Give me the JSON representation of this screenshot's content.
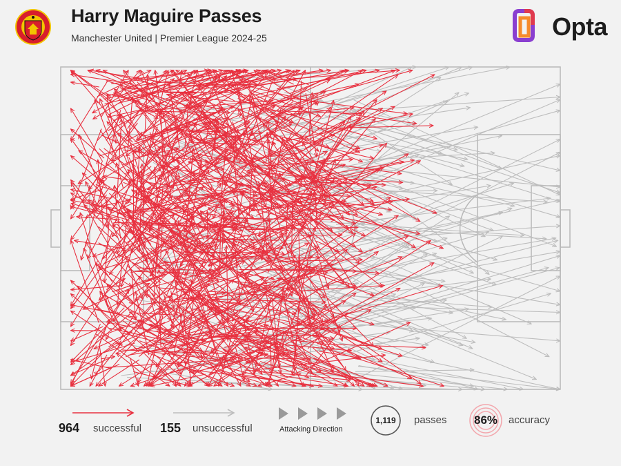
{
  "header": {
    "title": "Harry Maguire Passes",
    "subtitle": "Manchester United | Premier League 2024-25",
    "crest_text_top": "MANCHESTER",
    "crest_text_bottom": "UNITED",
    "brand": "Opta"
  },
  "legend": {
    "successful_count": "964",
    "successful_label": "successful",
    "unsuccessful_count": "155",
    "unsuccessful_label": "unsuccessful",
    "direction_label": "Attacking Direction",
    "passes_count": "1,119",
    "passes_label": "passes",
    "accuracy_value": "86%",
    "accuracy_label": "accuracy"
  },
  "colors": {
    "successful": "#e8303f",
    "unsuccessful": "#bdbdbd",
    "pitch_line": "#b8b8b8",
    "background": "#f2f2f2",
    "accent_ring": "#f3a7ad",
    "opta_orange": "#f68b2c",
    "opta_purple": "#8a3fd0",
    "opta_red": "#e03a4e"
  },
  "icons": [
    "manchester-united-crest",
    "opta-logo-icon",
    "direction-arrow-icon"
  ],
  "chart_data": {
    "type": "scatter",
    "description_free": true,
    "x_range": [
      0,
      100
    ],
    "y_range": [
      0,
      100
    ],
    "series": [
      {
        "name": "successful",
        "count": 964
      },
      {
        "name": "unsuccessful",
        "count": 155
      }
    ],
    "total_passes": 1119,
    "accuracy_percent": 86
  }
}
